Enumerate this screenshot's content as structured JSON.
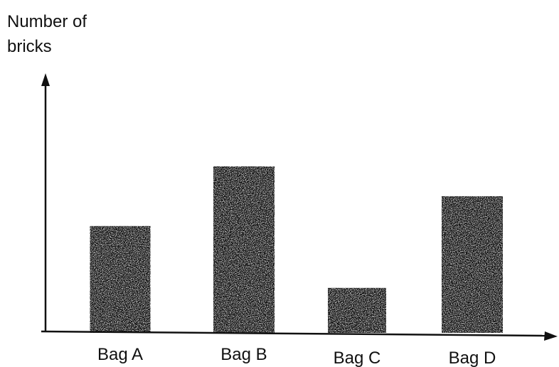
{
  "chart_data": {
    "type": "bar",
    "title": "",
    "xlabel": "",
    "ylabel_lines": [
      "Number of",
      "bricks"
    ],
    "categories": [
      "Bag A",
      "Bag B",
      "Bag C",
      "Bag D"
    ],
    "values": [
      4.6,
      7.2,
      1.9,
      5.9
    ],
    "ylim": [
      0,
      10.8
    ],
    "grid": false,
    "bar_color": "#111111",
    "axis_color": "#111111"
  }
}
